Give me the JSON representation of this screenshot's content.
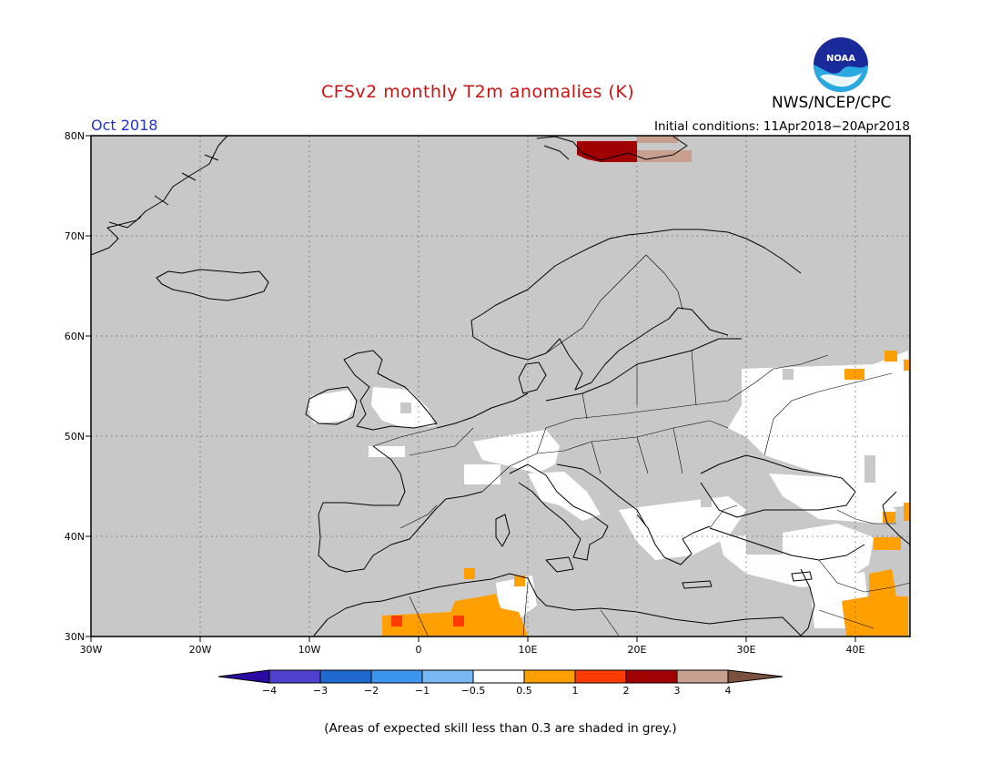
{
  "header": {
    "title": "CFSv2 monthly T2m anomalies (K)",
    "agency": "NWS/NCEP/CPC",
    "logo_text": "NOAA",
    "valid_month": "Oct 2018",
    "initial_conditions": "Initial conditions: 11Apr2018−20Apr2018"
  },
  "map": {
    "lon_ticks": [
      "30W",
      "20W",
      "10W",
      "0",
      "10E",
      "20E",
      "30E",
      "40E"
    ],
    "lat_ticks": [
      "80N",
      "70N",
      "60N",
      "50N",
      "40N",
      "30N"
    ],
    "colors": {
      "low_skill_grey": "#c8c8c8",
      "neutral_white": "#ffffff",
      "anomaly_0_5_to_1": "#ffa000",
      "anomaly_1_to_2": "#ff3c00",
      "anomaly_2_to_3": "#a00000",
      "anomaly_3_to_4": "#c8a090"
    }
  },
  "colorbar": {
    "labels": [
      "−4",
      "−3",
      "−2",
      "−1",
      "−0.5",
      "0.5",
      "1",
      "2",
      "3",
      "4"
    ],
    "colors": [
      "#2a0aa0",
      "#5040d0",
      "#1e6ad0",
      "#3c96f0",
      "#78b9f5",
      "#ffffff",
      "#ffa000",
      "#ff3c00",
      "#a00000",
      "#c8a090",
      "#7a5040"
    ]
  },
  "footnote": "(Areas of expected skill less than 0.3 are shaded in grey.)"
}
